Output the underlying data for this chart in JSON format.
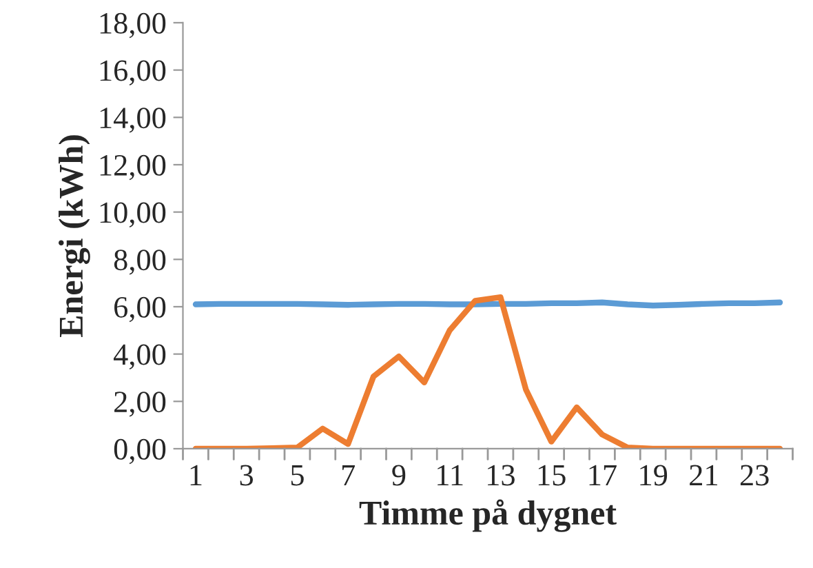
{
  "chart_data": {
    "type": "line",
    "xlabel": "Timme på dygnet",
    "ylabel": "Energi (kWh)",
    "categories": [
      "1",
      null,
      "3",
      null,
      "5",
      null,
      "7",
      null,
      "9",
      null,
      "11",
      null,
      "13",
      null,
      "15",
      null,
      "17",
      null,
      "19",
      null,
      "21",
      null,
      "23",
      null
    ],
    "series": [
      {
        "color": "#5b9bd5",
        "values": [
          6.1,
          6.12,
          6.12,
          6.12,
          6.12,
          6.1,
          6.08,
          6.1,
          6.12,
          6.12,
          6.1,
          6.1,
          6.12,
          6.12,
          6.15,
          6.15,
          6.18,
          6.1,
          6.05,
          6.08,
          6.12,
          6.15,
          6.15,
          6.18
        ]
      },
      {
        "color": "#ed7d31",
        "values": [
          0,
          0,
          0,
          0.02,
          0.05,
          0.85,
          0.2,
          3.05,
          3.9,
          2.8,
          5.0,
          6.25,
          6.4,
          2.5,
          0.3,
          1.75,
          0.6,
          0.05,
          0,
          0,
          0,
          0,
          0,
          0
        ]
      }
    ],
    "ylim": [
      0,
      18
    ],
    "yticks": [
      {
        "value": 0,
        "label": "0,00"
      },
      {
        "value": 2,
        "label": "2,00"
      },
      {
        "value": 4,
        "label": "4,00"
      },
      {
        "value": 6,
        "label": "6,00"
      },
      {
        "value": 8,
        "label": "8,00"
      },
      {
        "value": 10,
        "label": "10,00"
      },
      {
        "value": 12,
        "label": "12,00"
      },
      {
        "value": 14,
        "label": "14,00"
      },
      {
        "value": 16,
        "label": "16,00"
      },
      {
        "value": 18,
        "label": "18,00"
      }
    ],
    "grid": false,
    "legend": false
  }
}
